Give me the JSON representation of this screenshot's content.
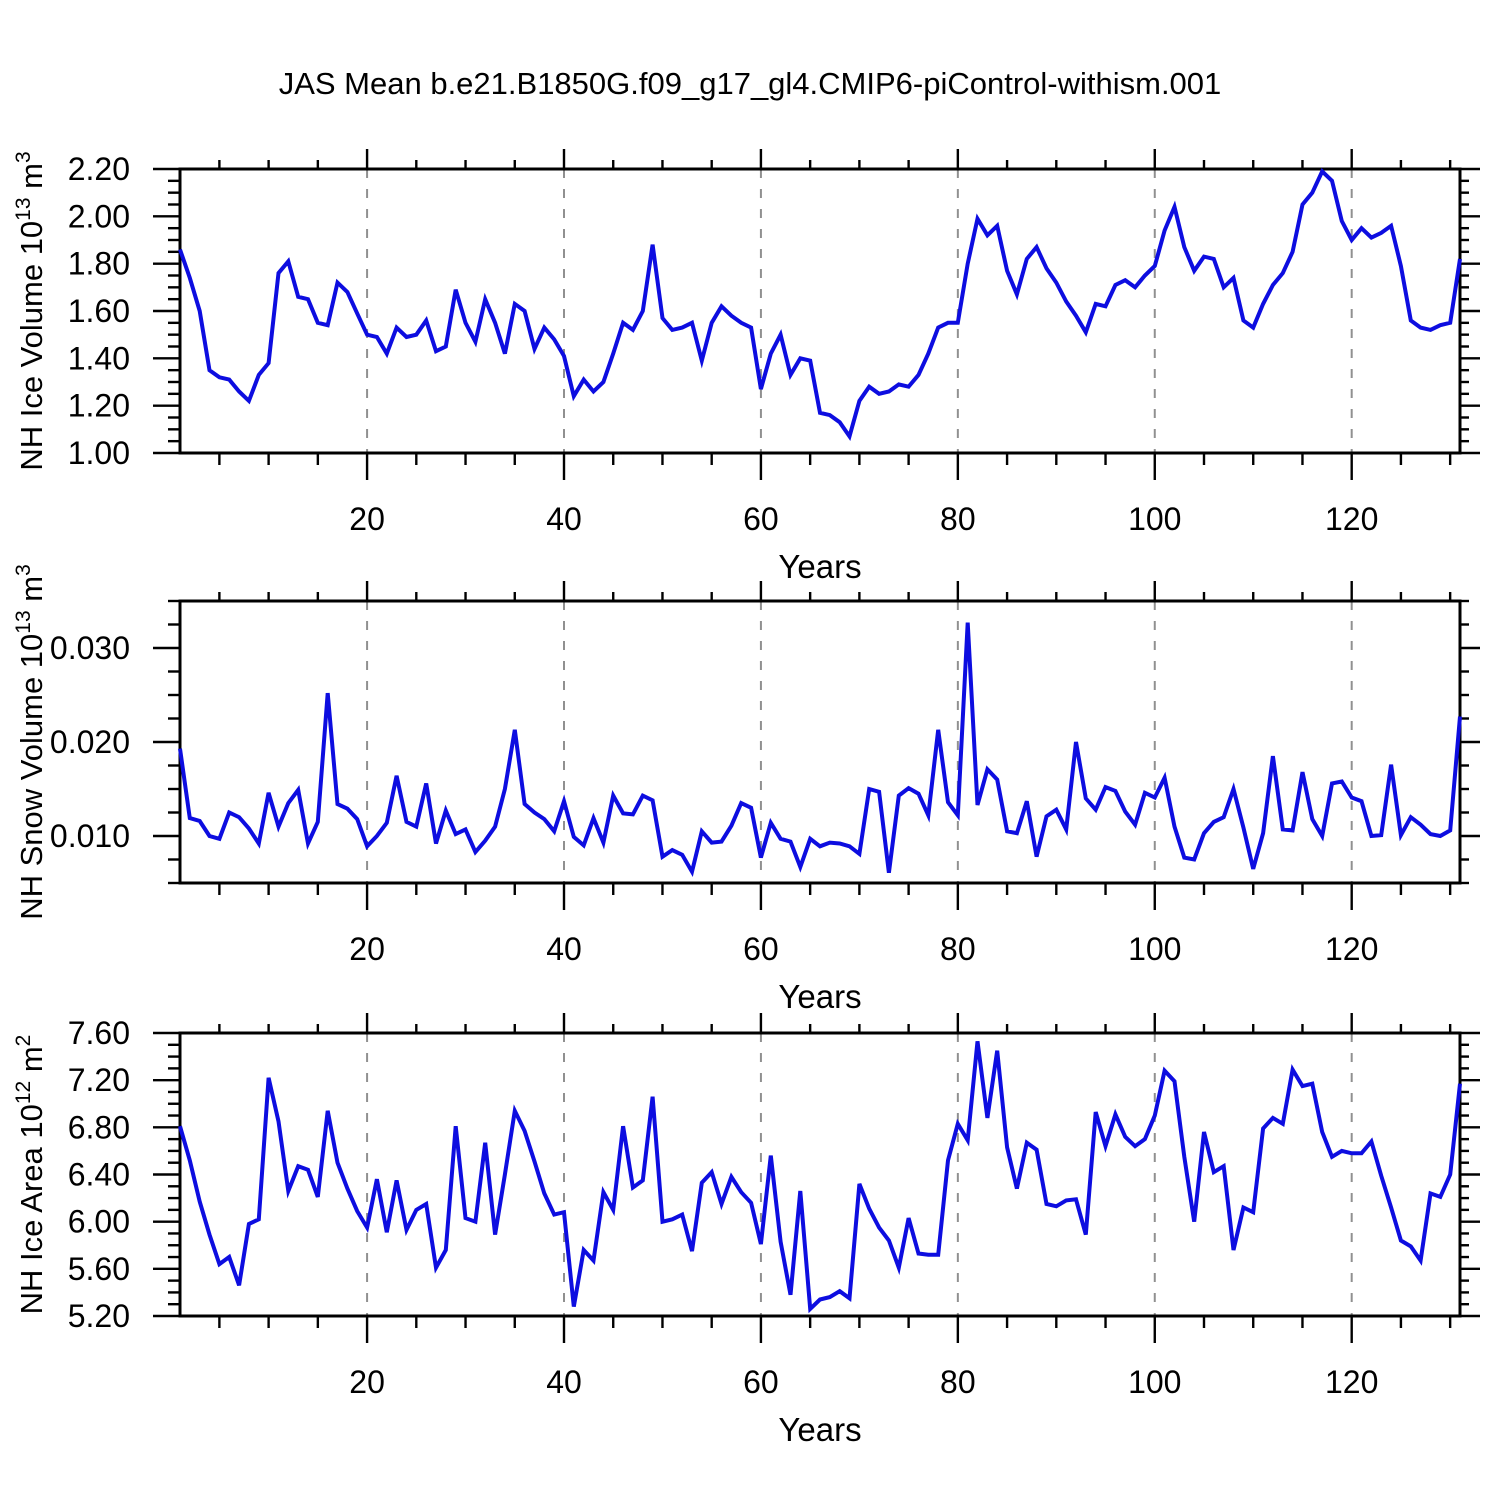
{
  "title": "JAS Mean b.e21.B1850G.f09_g17_gl4.CMIP6-piControl-withism.001",
  "colors": {
    "line": "#0d0de0",
    "frame": "#000000",
    "grid": "#909090",
    "text": "#000000",
    "background": "#ffffff"
  },
  "chart_data": [
    {
      "type": "line",
      "panel": 1,
      "series_name": "NH Ice Volume",
      "xlabel": "Years",
      "ylabel": "NH Ice Volume 10^13 m^3",
      "ylabel_parts": [
        [
          "t",
          "NH Ice Volume 10"
        ],
        [
          "s",
          "13"
        ],
        [
          "t",
          " m"
        ],
        [
          "s",
          "3"
        ]
      ],
      "xlim": [
        1,
        131
      ],
      "ylim": [
        1.0,
        2.2
      ],
      "xticks": [
        20,
        40,
        60,
        80,
        100,
        120
      ],
      "xminor_step": 5,
      "yticks": [
        1.0,
        1.2,
        1.4,
        1.6,
        1.8,
        2.0,
        2.2
      ],
      "yminor_step": 0.05,
      "ytick_decimals": 2,
      "grid": "vertical-dashed",
      "x_start": 1,
      "values": [
        1.86,
        1.74,
        1.6,
        1.35,
        1.32,
        1.31,
        1.26,
        1.22,
        1.33,
        1.38,
        1.76,
        1.81,
        1.66,
        1.65,
        1.55,
        1.54,
        1.72,
        1.68,
        1.59,
        1.5,
        1.49,
        1.42,
        1.53,
        1.49,
        1.5,
        1.56,
        1.43,
        1.45,
        1.69,
        1.55,
        1.47,
        1.65,
        1.55,
        1.42,
        1.63,
        1.6,
        1.44,
        1.53,
        1.48,
        1.41,
        1.24,
        1.31,
        1.26,
        1.3,
        1.42,
        1.55,
        1.52,
        1.6,
        1.88,
        1.57,
        1.52,
        1.53,
        1.55,
        1.39,
        1.55,
        1.62,
        1.58,
        1.55,
        1.53,
        1.27,
        1.42,
        1.5,
        1.33,
        1.4,
        1.39,
        1.17,
        1.16,
        1.13,
        1.07,
        1.22,
        1.28,
        1.25,
        1.26,
        1.29,
        1.28,
        1.33,
        1.42,
        1.53,
        1.55,
        1.55,
        1.8,
        1.99,
        1.92,
        1.96,
        1.77,
        1.67,
        1.82,
        1.87,
        1.78,
        1.72,
        1.64,
        1.58,
        1.51,
        1.63,
        1.62,
        1.71,
        1.73,
        1.7,
        1.75,
        1.79,
        1.94,
        2.04,
        1.87,
        1.77,
        1.83,
        1.82,
        1.7,
        1.74,
        1.56,
        1.53,
        1.63,
        1.71,
        1.76,
        1.85,
        2.05,
        2.1,
        2.19,
        2.15,
        1.98,
        1.9,
        1.95,
        1.91,
        1.93,
        1.96,
        1.79,
        1.56,
        1.53,
        1.52,
        1.54,
        1.55,
        1.82
      ]
    },
    {
      "type": "line",
      "panel": 2,
      "series_name": "NH Snow Volume",
      "xlabel": "Years",
      "ylabel": "NH Snow Volume 10^13 m^3",
      "ylabel_parts": [
        [
          "t",
          "NH Snow Volume 10"
        ],
        [
          "s",
          "13"
        ],
        [
          "t",
          " m"
        ],
        [
          "s",
          "3"
        ]
      ],
      "xlim": [
        1,
        131
      ],
      "ylim": [
        0.005,
        0.035
      ],
      "xticks": [
        20,
        40,
        60,
        80,
        100,
        120
      ],
      "xminor_step": 5,
      "yticks": [
        0.01,
        0.02,
        0.03
      ],
      "yminor_step": 0.0025,
      "ytick_decimals": 3,
      "grid": "vertical-dashed",
      "x_start": 1,
      "values": [
        0.0193,
        0.0119,
        0.0116,
        0.01,
        0.0097,
        0.0125,
        0.012,
        0.0108,
        0.0092,
        0.0146,
        0.011,
        0.0135,
        0.0149,
        0.0092,
        0.0115,
        0.0252,
        0.0134,
        0.0129,
        0.0118,
        0.0089,
        0.01,
        0.0114,
        0.0164,
        0.0115,
        0.011,
        0.0156,
        0.0092,
        0.0127,
        0.0102,
        0.0107,
        0.0083,
        0.0095,
        0.011,
        0.015,
        0.0213,
        0.0134,
        0.0125,
        0.0118,
        0.0105,
        0.0137,
        0.0099,
        0.009,
        0.0119,
        0.0093,
        0.0143,
        0.0124,
        0.0123,
        0.0143,
        0.0138,
        0.0078,
        0.0085,
        0.008,
        0.0062,
        0.0105,
        0.0093,
        0.0094,
        0.0111,
        0.0135,
        0.013,
        0.0077,
        0.0114,
        0.0097,
        0.0094,
        0.0067,
        0.0097,
        0.0089,
        0.0093,
        0.0092,
        0.0089,
        0.0081,
        0.015,
        0.0147,
        0.0061,
        0.0143,
        0.0151,
        0.0145,
        0.0122,
        0.0213,
        0.0136,
        0.0122,
        0.0327,
        0.0133,
        0.0171,
        0.016,
        0.0105,
        0.0103,
        0.0137,
        0.0078,
        0.0121,
        0.0128,
        0.0107,
        0.02,
        0.014,
        0.0128,
        0.0152,
        0.0148,
        0.0126,
        0.0112,
        0.0146,
        0.0141,
        0.0162,
        0.011,
        0.0077,
        0.0075,
        0.0103,
        0.0115,
        0.012,
        0.015,
        0.0109,
        0.0065,
        0.0103,
        0.0185,
        0.0107,
        0.0106,
        0.0168,
        0.0118,
        0.01,
        0.0156,
        0.0158,
        0.0141,
        0.0137,
        0.01,
        0.0101,
        0.0176,
        0.0101,
        0.012,
        0.0112,
        0.0102,
        0.01,
        0.0106,
        0.0227
      ]
    },
    {
      "type": "line",
      "panel": 3,
      "series_name": "NH Ice Area",
      "xlabel": "Years",
      "ylabel": "NH Ice Area 10^12 m^2",
      "ylabel_parts": [
        [
          "t",
          "NH Ice Area 10"
        ],
        [
          "s",
          "12"
        ],
        [
          "t",
          " m"
        ],
        [
          "s",
          "2"
        ]
      ],
      "xlim": [
        1,
        131
      ],
      "ylim": [
        5.2,
        7.6
      ],
      "xticks": [
        20,
        40,
        60,
        80,
        100,
        120
      ],
      "xminor_step": 5,
      "yticks": [
        5.2,
        5.6,
        6.0,
        6.4,
        6.8,
        7.2,
        7.6
      ],
      "yminor_step": 0.1,
      "ytick_decimals": 2,
      "grid": "vertical-dashed",
      "x_start": 1,
      "values": [
        6.81,
        6.52,
        6.17,
        5.89,
        5.64,
        5.7,
        5.46,
        5.98,
        6.02,
        7.22,
        6.85,
        6.26,
        6.47,
        6.44,
        6.21,
        6.94,
        6.5,
        6.28,
        6.09,
        5.95,
        6.36,
        5.91,
        6.35,
        5.93,
        6.1,
        6.15,
        5.61,
        5.76,
        6.81,
        6.03,
        6.0,
        6.67,
        5.89,
        6.4,
        6.94,
        6.77,
        6.51,
        6.24,
        6.06,
        6.08,
        5.28,
        5.76,
        5.67,
        6.25,
        6.1,
        6.81,
        6.29,
        6.35,
        7.06,
        6.0,
        6.02,
        6.06,
        5.75,
        6.33,
        6.42,
        6.15,
        6.38,
        6.25,
        6.16,
        5.81,
        6.56,
        5.83,
        5.38,
        6.26,
        5.26,
        5.34,
        5.36,
        5.41,
        5.35,
        6.32,
        6.11,
        5.95,
        5.84,
        5.61,
        6.03,
        5.73,
        5.72,
        5.72,
        6.52,
        6.83,
        6.69,
        7.53,
        6.88,
        7.45,
        6.63,
        6.28,
        6.67,
        6.61,
        6.15,
        6.13,
        6.18,
        6.19,
        5.89,
        6.93,
        6.64,
        6.91,
        6.72,
        6.64,
        6.7,
        6.9,
        7.28,
        7.19,
        6.55,
        6.0,
        6.76,
        6.42,
        6.47,
        5.76,
        6.12,
        6.08,
        6.79,
        6.88,
        6.83,
        7.29,
        7.15,
        7.17,
        6.76,
        6.55,
        6.6,
        6.58,
        6.58,
        6.68,
        6.39,
        6.12,
        5.84,
        5.79,
        5.67,
        6.24,
        6.21,
        6.4,
        7.17
      ]
    }
  ]
}
